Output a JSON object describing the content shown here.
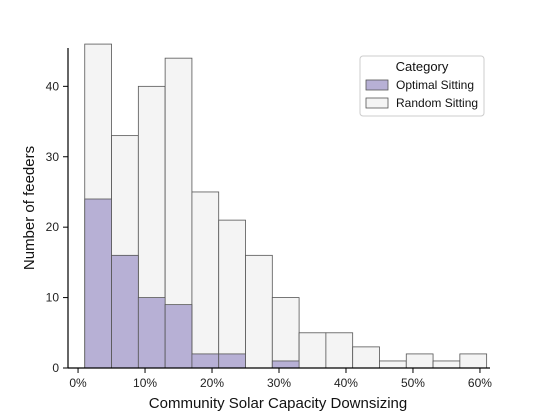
{
  "chart_data": {
    "type": "bar",
    "subtype": "stacked-histogram",
    "xlabel": "Community Solar Capacity Downsizing",
    "ylabel": "Number of feeders",
    "x_ticks": [
      0,
      10,
      20,
      30,
      40,
      50,
      60
    ],
    "x_tick_labels": [
      "0%",
      "10%",
      "20%",
      "30%",
      "40%",
      "50%",
      "60%"
    ],
    "y_ticks": [
      0,
      10,
      20,
      30,
      40
    ],
    "y_tick_labels": [
      "0",
      "10",
      "20",
      "30",
      "40"
    ],
    "xlim": [
      -1.5,
      61.5
    ],
    "ylim": [
      0,
      48
    ],
    "bin_edges": [
      1,
      5,
      9,
      13,
      17,
      21,
      25,
      29,
      33,
      37,
      41,
      45,
      49,
      53,
      57,
      61
    ],
    "legend": {
      "title": "Category",
      "position": "top-right",
      "entries": [
        "Optimal Sitting",
        "Random Sitting"
      ]
    },
    "series": [
      {
        "name": "Optimal Sitting",
        "color": "#b7b0d5",
        "values": [
          24,
          16,
          10,
          9,
          2,
          2,
          0,
          1,
          0,
          0,
          0,
          0,
          0,
          0,
          0
        ]
      },
      {
        "name": "Random Sitting",
        "color": "#f4f4f4",
        "values": [
          46,
          33,
          40,
          44,
          25,
          21,
          16,
          10,
          5,
          5,
          3,
          1,
          2,
          1,
          2
        ]
      }
    ]
  }
}
